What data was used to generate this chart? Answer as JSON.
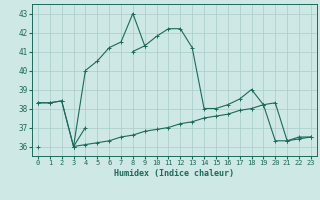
{
  "xlabel": "Humidex (Indice chaleur)",
  "bg_color": "#cde8e5",
  "grid_color": "#a8ccc8",
  "line_color": "#1a6b5a",
  "ylim": [
    35.5,
    43.5
  ],
  "yticks": [
    36,
    37,
    38,
    39,
    40,
    41,
    42,
    43
  ],
  "xlim": [
    -0.5,
    23.5
  ],
  "curve1_x": [
    0,
    1,
    2,
    3,
    4,
    5,
    6,
    7,
    8,
    9,
    10,
    11,
    12,
    13,
    14,
    15,
    16,
    17,
    18,
    19,
    20,
    21,
    22,
    23
  ],
  "curve1_y": [
    38.3,
    38.3,
    38.4,
    36.0,
    40.0,
    40.5,
    41.2,
    41.5,
    43.0,
    41.3,
    41.8,
    42.2,
    42.2,
    41.2,
    38.0,
    38.0,
    38.2,
    38.5,
    39.0,
    38.2,
    36.3,
    36.3,
    36.5,
    36.5
  ],
  "curve2_x": [
    0,
    1,
    2,
    3,
    4,
    5,
    6,
    7,
    8,
    9,
    10,
    11,
    12,
    13,
    14,
    15,
    16,
    17,
    18,
    19,
    20,
    21,
    22,
    23
  ],
  "curve2_y": [
    38.3,
    38.3,
    38.4,
    36.0,
    37.0,
    null,
    null,
    null,
    41.0,
    41.3,
    null,
    null,
    null,
    null,
    null,
    null,
    null,
    null,
    null,
    38.2,
    null,
    null,
    null,
    null
  ],
  "curve3_x": [
    0,
    1,
    2,
    3,
    4,
    5,
    6,
    7,
    8,
    9,
    10,
    11,
    12,
    13,
    14,
    15,
    16,
    17,
    18,
    19,
    20,
    21,
    22,
    23
  ],
  "curve3_y": [
    36.0,
    null,
    null,
    36.0,
    36.1,
    36.2,
    36.3,
    36.5,
    36.6,
    36.8,
    36.9,
    37.0,
    37.2,
    37.3,
    37.5,
    37.6,
    37.7,
    37.9,
    38.0,
    38.2,
    38.3,
    36.3,
    36.4,
    36.5
  ]
}
